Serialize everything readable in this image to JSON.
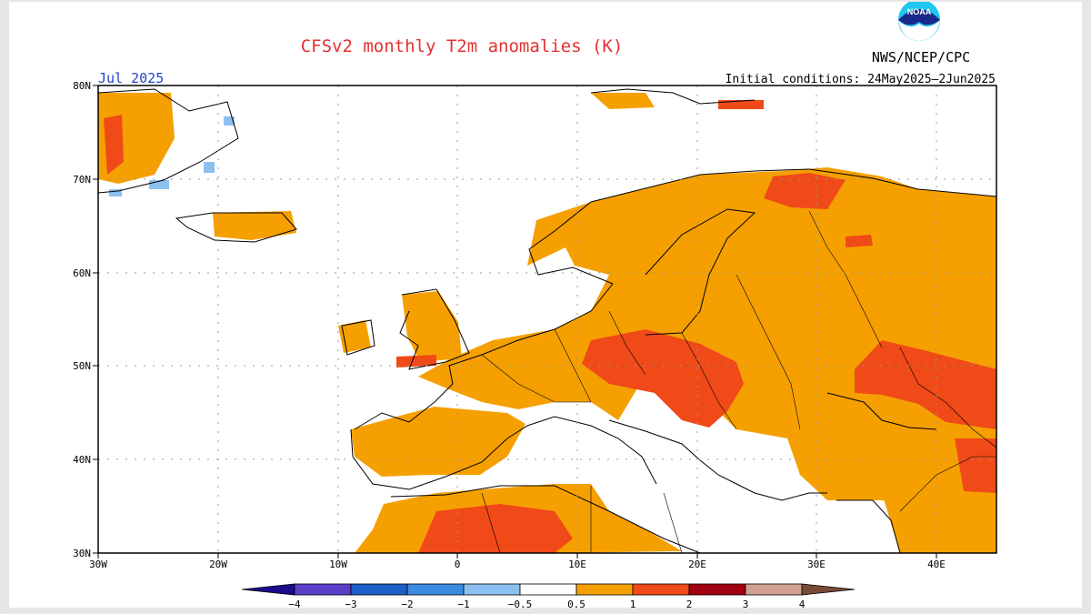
{
  "title": "CFSv2 monthly T2m anomalies (K)",
  "agency": "NWS/NCEP/CPC",
  "logo_text": "NOAA",
  "month_label": "Jul 2025",
  "initial_conditions": "Initial conditions: 24May2025–2Jun2025",
  "lon_labels": [
    "30W",
    "20W",
    "10W",
    "0",
    "10E",
    "20E",
    "30E",
    "40E"
  ],
  "lat_labels": [
    "80N",
    "70N",
    "60N",
    "50N",
    "40N",
    "30N"
  ],
  "legend": {
    "levels": [
      "−4",
      "−3",
      "−2",
      "−1",
      "−0.5",
      "0.5",
      "1",
      "2",
      "3",
      "4"
    ],
    "colors": {
      "lt_-4": "#1a0a8c",
      "-4_-3": "#5a3fc8",
      "-3_-2": "#1e5ec8",
      "-2_-1": "#3a8ae0",
      "-1_-0.5": "#8cc0f0",
      "-0.5_0.5": "#ffffff",
      "0.5_1": "#f5a000",
      "1_2": "#f04a18",
      "2_3": "#a00010",
      "3_4": "#d0a090",
      "gt_4": "#7a4a38"
    }
  },
  "map": {
    "extent": {
      "lon": [
        -30,
        45
      ],
      "lat": [
        30,
        80
      ]
    },
    "grid": "dotted",
    "dominant_anomaly": "+0.5 to +1 K over most of Europe; +1 to +2 K over central/eastern Europe, North Africa and Scandinavia; below −0.5 K near Greenland"
  }
}
